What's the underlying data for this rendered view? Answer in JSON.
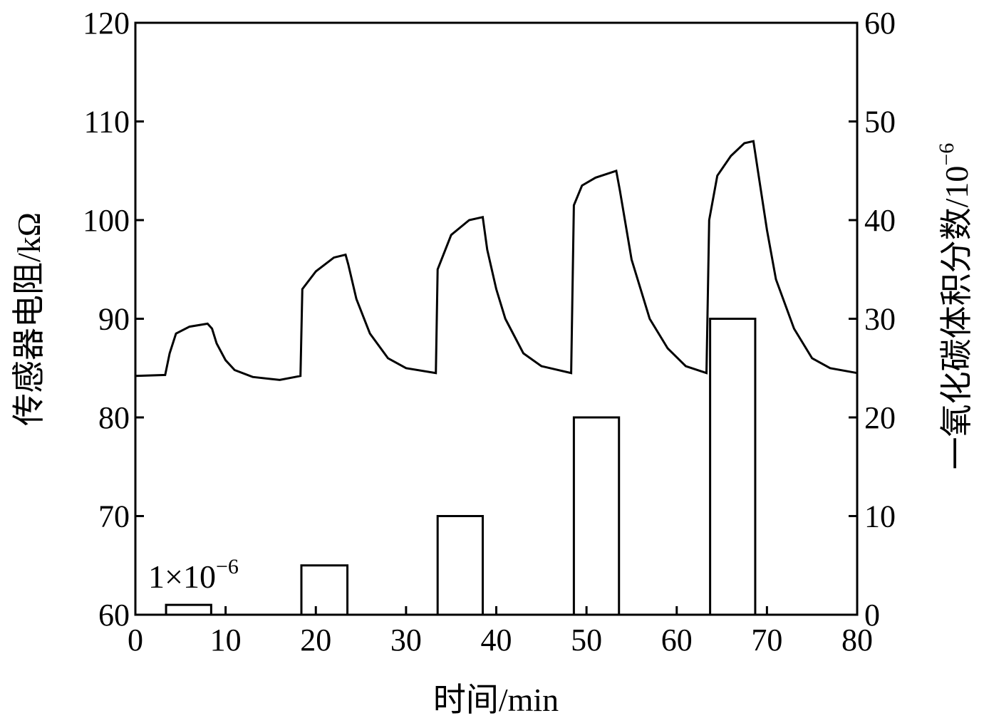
{
  "chart_data": {
    "type": "line+bar",
    "xlabel": "时间/min",
    "ylabel_left": "传感器电阻/kΩ",
    "ylabel_right_base": "一氧化碳体积分数/10",
    "ylabel_right_exp": "−6",
    "xlim": [
      0,
      80
    ],
    "ylim_left": [
      60,
      120
    ],
    "ylim_right": [
      0,
      60
    ],
    "xticks": [
      0,
      10,
      20,
      30,
      40,
      50,
      60,
      70,
      80
    ],
    "yticks_left": [
      60,
      70,
      80,
      90,
      100,
      110,
      120
    ],
    "yticks_right": [
      0,
      10,
      20,
      30,
      40,
      50,
      60
    ],
    "annotation": {
      "base": "1×10",
      "exp": "−6"
    },
    "bars": [
      {
        "start": 3.4,
        "end": 8.4,
        "value": 1
      },
      {
        "start": 18.4,
        "end": 23.5,
        "value": 5
      },
      {
        "start": 33.5,
        "end": 38.5,
        "value": 10
      },
      {
        "start": 48.6,
        "end": 53.6,
        "value": 20
      },
      {
        "start": 63.7,
        "end": 68.7,
        "value": 30
      }
    ],
    "series": [
      {
        "name": "传感器电阻",
        "axis": "left",
        "x": [
          0,
          3.3,
          3.8,
          4.5,
          6,
          8,
          8.5,
          9,
          10,
          11,
          13,
          16,
          18.3,
          18.5,
          20,
          22,
          23.3,
          23.6,
          24.5,
          26,
          28,
          30,
          33.3,
          33.5,
          35,
          37,
          38.5,
          39,
          40,
          41,
          43,
          45,
          48.3,
          48.6,
          49.5,
          51,
          53.3,
          53.7,
          55,
          57,
          59,
          61,
          63.3,
          63.6,
          64.5,
          66,
          67.5,
          68.5,
          69,
          70,
          71,
          73,
          75,
          77,
          80
        ],
        "y": [
          84.2,
          84.3,
          86.5,
          88.5,
          89.2,
          89.5,
          89,
          87.5,
          85.8,
          84.8,
          84.1,
          83.8,
          84.2,
          93,
          94.8,
          96.2,
          96.5,
          95.5,
          92,
          88.5,
          86,
          85,
          84.5,
          95,
          98.5,
          100,
          100.3,
          97,
          93,
          90,
          86.5,
          85.2,
          84.5,
          101.5,
          103.5,
          104.3,
          105,
          103,
          96,
          90,
          87,
          85.2,
          84.5,
          100,
          104.5,
          106.5,
          107.8,
          108,
          105,
          99,
          94,
          89,
          86,
          85,
          84.5
        ]
      }
    ]
  }
}
